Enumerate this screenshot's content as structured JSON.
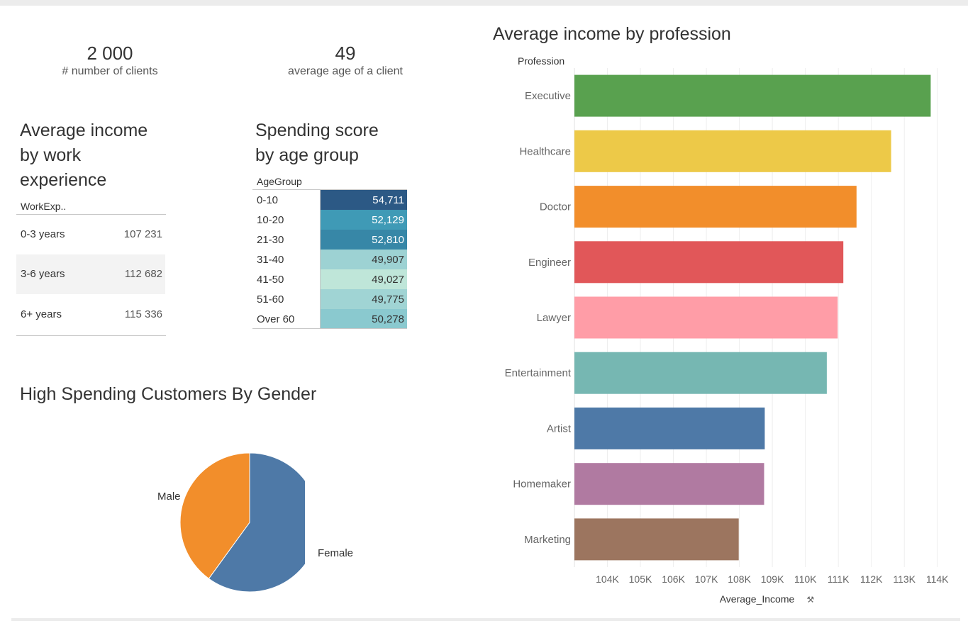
{
  "kpis": {
    "clients": {
      "value": "2 000",
      "label": "# number of clients"
    },
    "age": {
      "value": "49",
      "label": "average age of a client"
    }
  },
  "work_experience": {
    "title": [
      "Average income",
      "by work",
      "experience"
    ],
    "header": "WorkExp..",
    "rows": [
      {
        "label": "0-3 years",
        "value": "107 231"
      },
      {
        "label": "3-6 years",
        "value": "112 682"
      },
      {
        "label": "6+ years",
        "value": "115 336"
      }
    ]
  },
  "spending": {
    "title": [
      "Spending score",
      "by age group"
    ],
    "header": "AgeGroup",
    "rows": [
      {
        "label": "0-10",
        "value": "54,711",
        "color": "#2c5985",
        "text_color": "#ffffff"
      },
      {
        "label": "10-20",
        "value": "52,129",
        "color": "#3f9ab6",
        "text_color": "#ffffff"
      },
      {
        "label": "21-30",
        "value": "52,810",
        "color": "#3787a7",
        "text_color": "#ffffff"
      },
      {
        "label": "31-40",
        "value": "49,907",
        "color": "#9dd2d3",
        "text_color": "#333333"
      },
      {
        "label": "41-50",
        "value": "49,027",
        "color": "#bfe6d9",
        "text_color": "#333333"
      },
      {
        "label": "51-60",
        "value": "49,775",
        "color": "#a0d4d4",
        "text_color": "#333333"
      },
      {
        "label": "Over 60",
        "value": "50,278",
        "color": "#8ac9cf",
        "text_color": "#333333"
      }
    ]
  },
  "gender": {
    "title": "High Spending Customers By Gender"
  },
  "profession": {
    "title": "Average income by profession",
    "header": "Profession"
  },
  "chart_data": [
    {
      "type": "pie",
      "title": "High Spending Customers By Gender",
      "slices": [
        {
          "label": "Female",
          "value": 60,
          "color": "#4e79a7"
        },
        {
          "label": "Male",
          "value": 40,
          "color": "#f28e2b"
        }
      ]
    },
    {
      "type": "bar",
      "orientation": "horizontal",
      "title": "Average income by profession",
      "ylabel": "Profession",
      "xlabel": "Average_Income",
      "xlim": [
        103000,
        114500
      ],
      "xticks": [
        104000,
        105000,
        106000,
        107000,
        108000,
        109000,
        110000,
        111000,
        112000,
        113000,
        114000
      ],
      "xtick_labels": [
        "104K",
        "105K",
        "106K",
        "107K",
        "108K",
        "109K",
        "110K",
        "111K",
        "112K",
        "113K",
        "114K"
      ],
      "grid": true,
      "categories": [
        "Executive",
        "Healthcare",
        "Doctor",
        "Engineer",
        "Lawyer",
        "Entertainment",
        "Artist",
        "Homemaker",
        "Marketing"
      ],
      "values": [
        113800,
        112600,
        111550,
        111150,
        110980,
        110650,
        108770,
        108750,
        107980
      ],
      "colors": [
        "#59a14f",
        "#edc948",
        "#f28e2b",
        "#e15759",
        "#ff9da7",
        "#76b7b2",
        "#4e79a7",
        "#b07aa1",
        "#9c755f"
      ]
    }
  ]
}
